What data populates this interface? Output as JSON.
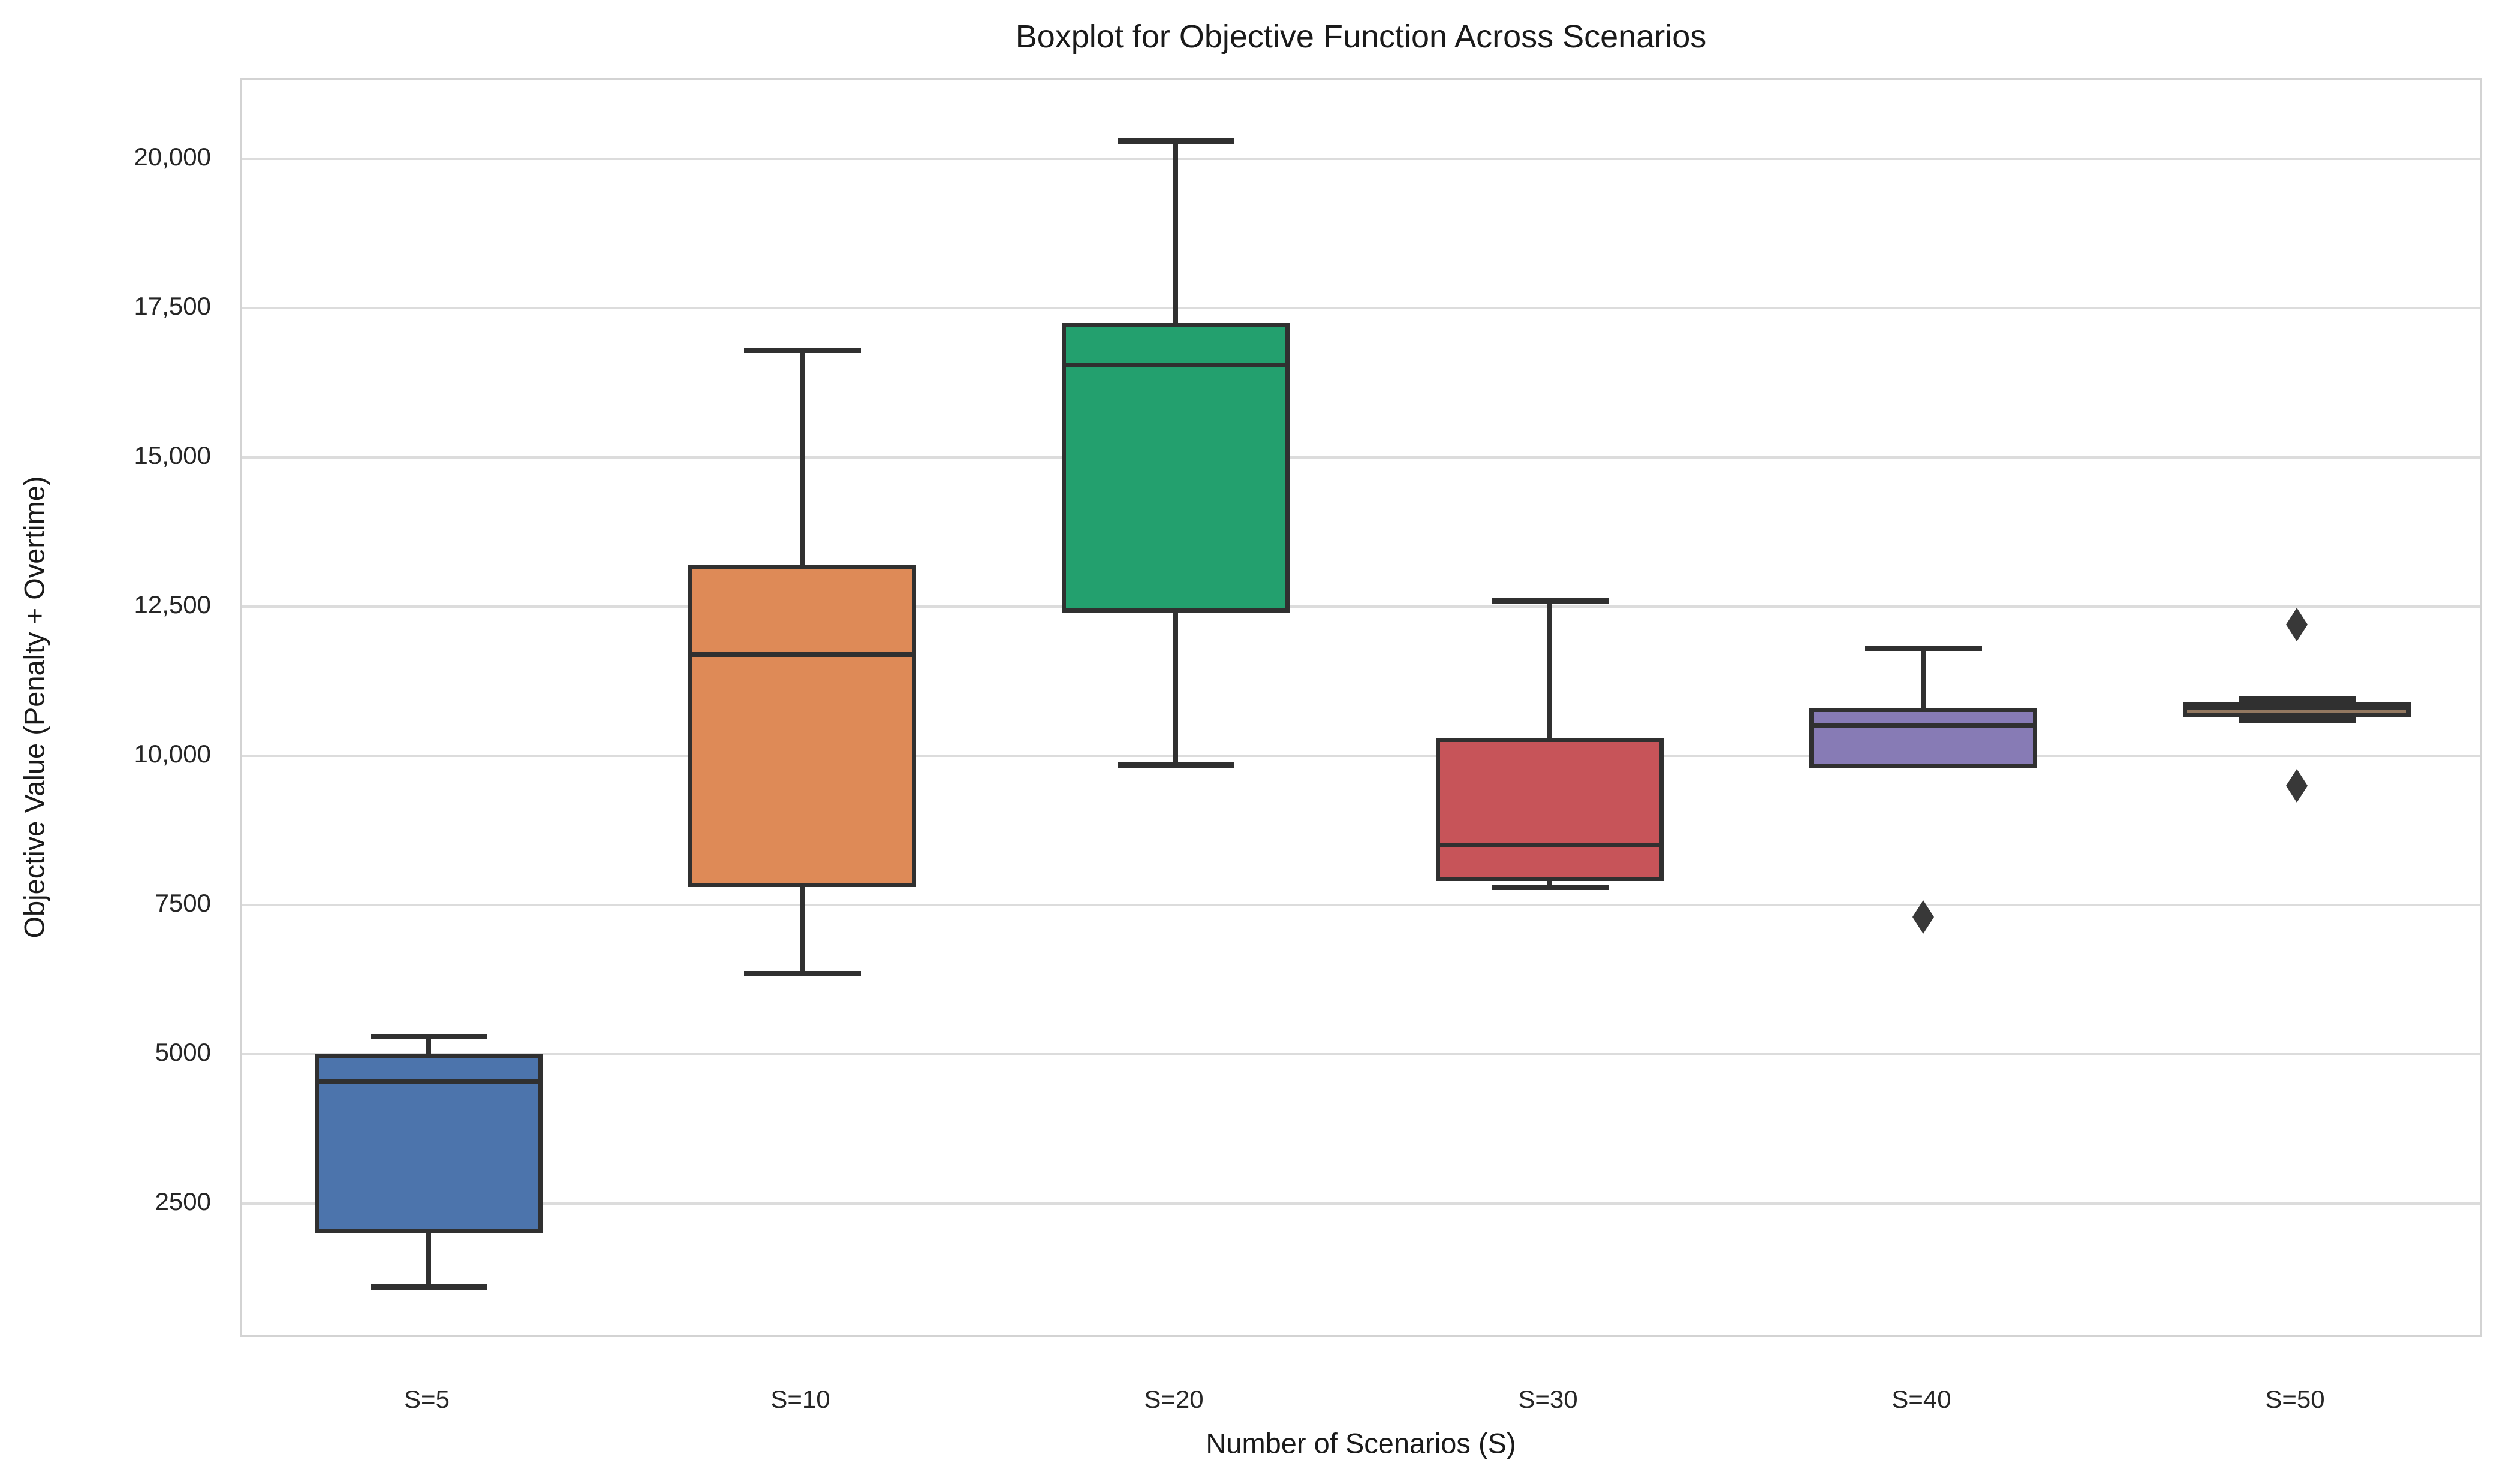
{
  "chart_data": {
    "type": "box",
    "title": "Boxplot for Objective Function Across Scenarios",
    "xlabel": "Number of Scenarios (S)",
    "ylabel": "Objective Value (Penalty + Overtime)",
    "categories": [
      "S=5",
      "S=10",
      "S=20",
      "S=30",
      "S=40",
      "S=50"
    ],
    "ylim": [
      230,
      21325
    ],
    "grid": true,
    "legend": false,
    "yticks": [
      {
        "value": 2500,
        "label": "2500"
      },
      {
        "value": 5000,
        "label": "5000"
      },
      {
        "value": 7500,
        "label": "7500"
      },
      {
        "value": 10000,
        "label": "10,000"
      },
      {
        "value": 12500,
        "label": "12,500"
      },
      {
        "value": 15000,
        "label": "15,000"
      },
      {
        "value": 17500,
        "label": "17,500"
      },
      {
        "value": 20000,
        "label": "20,000"
      }
    ],
    "boxes": [
      {
        "category": "S=5",
        "color": "#4C74AC",
        "whisker_low": 1100,
        "q1": 2000,
        "median": 4550,
        "q3": 5000,
        "whisker_high": 5300,
        "outliers": []
      },
      {
        "category": "S=10",
        "color": "#DE8A57",
        "whisker_low": 6350,
        "q1": 7800,
        "median": 11700,
        "q3": 13200,
        "whisker_high": 16800,
        "outliers": []
      },
      {
        "category": "S=20",
        "color": "#23A06E",
        "whisker_low": 9850,
        "q1": 12400,
        "median": 16550,
        "q3": 17250,
        "whisker_high": 20300,
        "outliers": []
      },
      {
        "category": "S=30",
        "color": "#C75459",
        "whisker_low": 7800,
        "q1": 7900,
        "median": 8500,
        "q3": 10300,
        "whisker_high": 12600,
        "outliers": []
      },
      {
        "category": "S=40",
        "color": "#877BB5",
        "whisker_low": 9800,
        "q1": 9800,
        "median": 10500,
        "q3": 10800,
        "whisker_high": 11800,
        "outliers": [
          7300
        ]
      },
      {
        "category": "S=50",
        "color": "#937860",
        "whisker_low": 10600,
        "q1": 10650,
        "median": 10800,
        "q3": 10900,
        "whisker_high": 10950,
        "outliers": [
          12200,
          9500
        ]
      }
    ],
    "styles": {
      "box_edge_color": "#303030",
      "median_color": "#303030",
      "flier_color": "#383838",
      "grid_color": "#dcdcdc",
      "spine_color": "#d3d3d3",
      "text_color": "#262626",
      "background": "#ffffff"
    }
  }
}
